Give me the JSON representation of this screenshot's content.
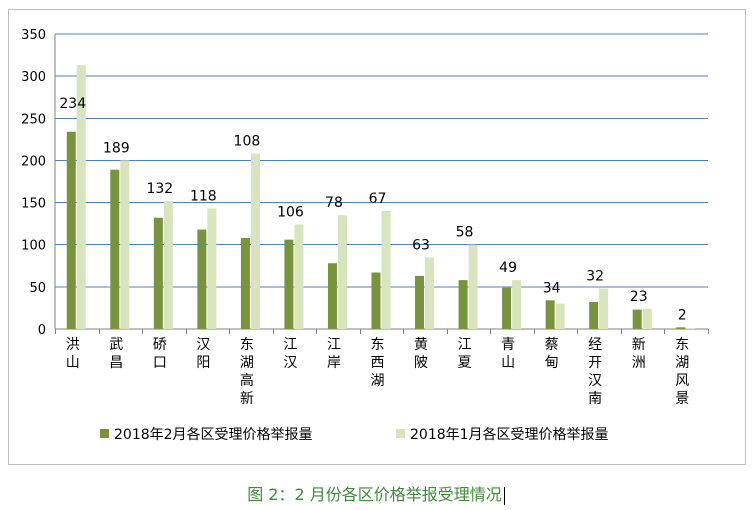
{
  "chart_data": {
    "type": "bar",
    "categories": [
      "洪山",
      "武昌",
      "硚口",
      "汉阳",
      "东湖高新",
      "江汉",
      "江岸",
      "东西湖",
      "黄陂",
      "江夏",
      "青山",
      "蔡甸",
      "经开汉南",
      "新洲",
      "东湖风景"
    ],
    "series": [
      {
        "name": "2018年2月各区受理价格举报量",
        "values": [
          234,
          189,
          132,
          118,
          108,
          106,
          78,
          67,
          63,
          58,
          49,
          34,
          32,
          23,
          2
        ],
        "color": "#77933c",
        "data_labels": true
      },
      {
        "name": "2018年1月各区受理价格举报量",
        "values": [
          313,
          200,
          152,
          143,
          208,
          124,
          135,
          140,
          85,
          100,
          58,
          30,
          48,
          24,
          1
        ],
        "color": "#d7e4bd",
        "data_labels": false
      }
    ],
    "y_ticks": [
      0,
      50,
      100,
      150,
      200,
      250,
      300,
      350
    ],
    "ylim": [
      0,
      350
    ],
    "grid": true,
    "legend_position": "bottom",
    "title": "",
    "xlabel": "",
    "ylabel": ""
  },
  "caption": "图 2：2 月份各区价格举报受理情况"
}
